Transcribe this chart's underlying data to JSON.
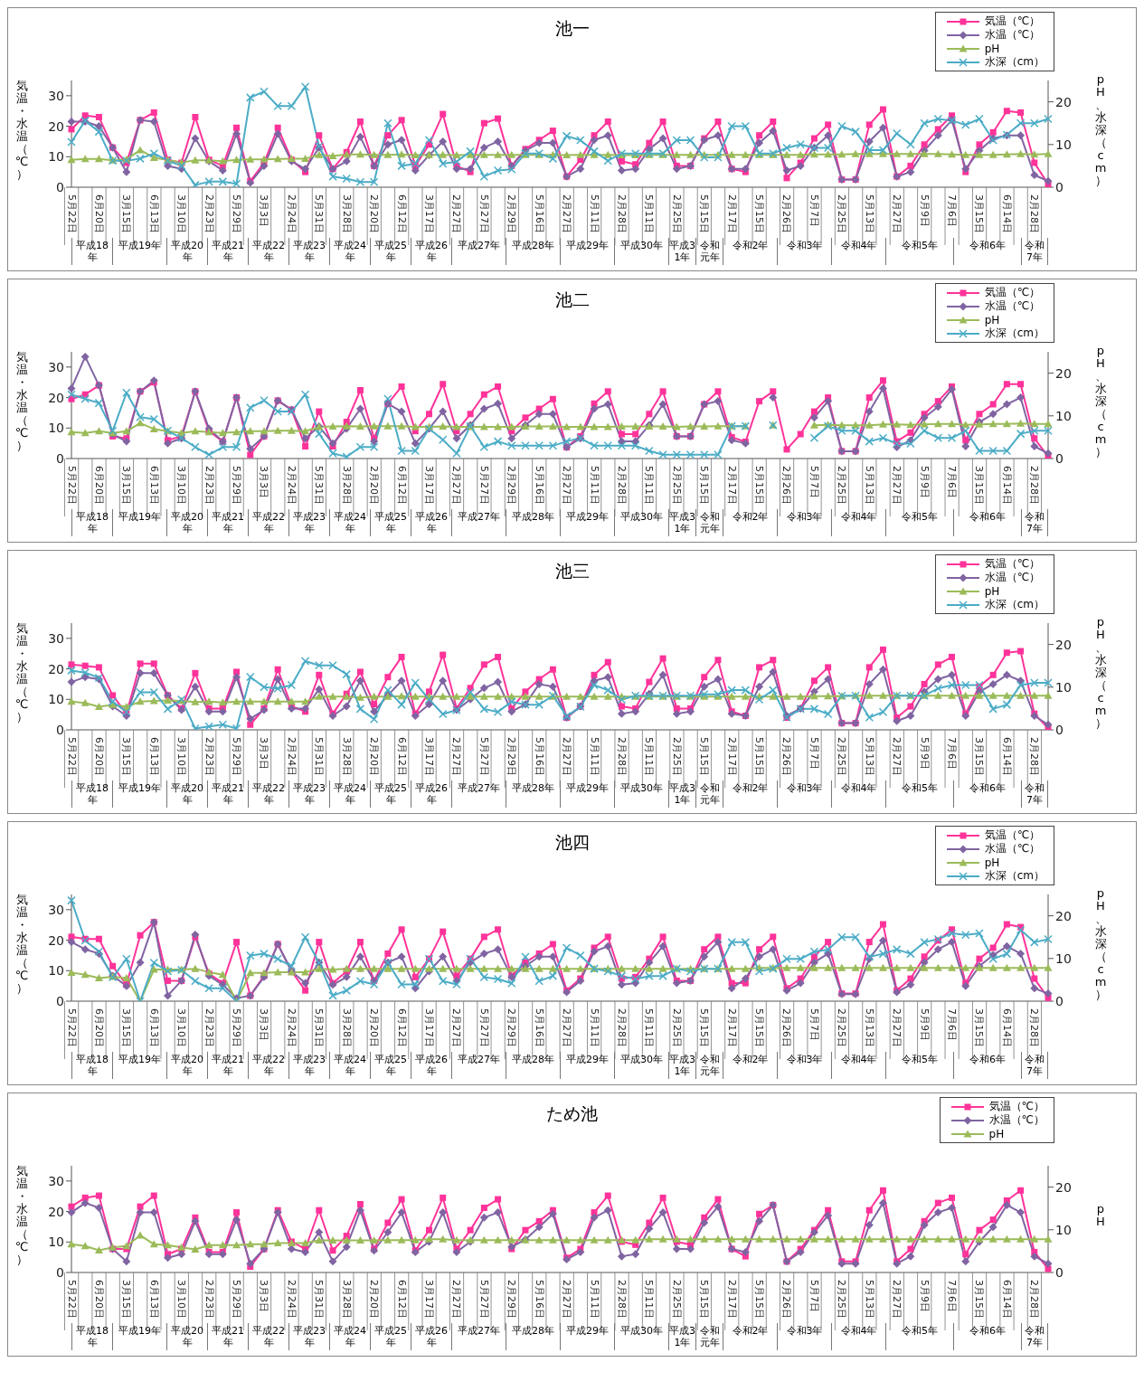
{
  "chart_data": [
    {
      "type": "line",
      "title": "池一",
      "ylabel": "気温・水温（℃）",
      "y2label": "pH、水深（cm）",
      "legend": "top right",
      "categories": [
        "5月22日",
        null,
        "6月20日",
        null,
        "3月15日",
        null,
        "6月13日",
        null,
        "3月10日",
        null,
        "2月23日",
        null,
        "5月29日",
        null,
        "3月3日",
        null,
        "2月24日",
        null,
        "5月31日",
        null,
        "3月28日",
        null,
        "2月20日",
        null,
        "6月12日",
        null,
        "3月17日",
        null,
        "2月27日",
        null,
        "5月27日",
        null,
        "2月29日",
        null,
        "5月16日",
        null,
        "2月27日",
        null,
        "5月11日",
        null,
        "2月28日",
        null,
        "5月11日",
        null,
        "2月25日",
        null,
        "5月15日",
        null,
        "2月17日",
        null,
        "5月15日",
        null,
        "2月26日",
        null,
        "5月7日",
        null,
        "2月25日",
        null,
        "5月13日",
        null,
        "2月27日",
        null,
        "5月9日",
        null,
        "7月6日",
        null,
        "3月15日",
        null,
        "6月14日",
        null,
        "2月28日",
        null
      ],
      "ylim": [
        0,
        35
      ],
      "yticks": [
        0,
        10,
        20,
        30
      ],
      "y2lim": [
        0,
        25
      ],
      "y2ticks": [
        0,
        10,
        20
      ],
      "series": [
        {
          "name": "気温（℃）",
          "color": "#ff3399",
          "marker": "square",
          "values": [
            19,
            23.5,
            23,
            13,
            8,
            22,
            24.5,
            9,
            8,
            23,
            9,
            7,
            19.5,
            2,
            8,
            19.5,
            9,
            5,
            17,
            6,
            11.5,
            21.5,
            7,
            17,
            22,
            7,
            14,
            24,
            7,
            5,
            21,
            22.5,
            7,
            12.5,
            15.5,
            18.5,
            3.5,
            9,
            17,
            21.5,
            8.5,
            7.5,
            14.5,
            21.5,
            7,
            7,
            16,
            21.5,
            6,
            5,
            17,
            21.5,
            3,
            8,
            16,
            20.5,
            2.5,
            2.5,
            20.5,
            25.5,
            3.5,
            7,
            14,
            19,
            23.5,
            5,
            14,
            18,
            25,
            24.5,
            8,
            1
          ]
        },
        {
          "name": "水温（℃）",
          "color": "#8064a2",
          "marker": "diamond",
          "values": [
            21.5,
            21.5,
            20,
            13,
            5,
            22,
            21.5,
            7,
            6,
            16,
            8.5,
            5.5,
            17.5,
            1.5,
            7,
            17.5,
            8.5,
            6,
            13,
            6,
            8.5,
            16.5,
            7,
            14,
            15.5,
            5.5,
            10.5,
            15,
            6,
            6,
            13,
            15,
            7,
            12,
            14.5,
            14.5,
            3.5,
            6,
            15.5,
            17,
            5.5,
            6,
            12.5,
            16,
            6,
            7,
            15.5,
            17,
            6,
            6,
            14.5,
            18.5,
            5.5,
            7,
            13,
            17,
            2.5,
            2.5,
            15,
            19.5,
            3.5,
            5,
            12,
            17,
            22,
            6,
            12,
            16,
            17,
            17,
            4,
            2
          ]
        },
        {
          "name": "pH",
          "color": "#9bbb59",
          "marker": "triangle",
          "axis": "y2",
          "values": [
            6.4,
            6.6,
            6.6,
            6.3,
            6.5,
            8.7,
            6.9,
            6.4,
            5.8,
            6.3,
            6.3,
            6.1,
            6.4,
            6.5,
            6.5,
            6.6,
            6.7,
            6.7,
            7.6,
            7.3,
            7.7,
            7.7,
            7.6,
            7.6,
            7.7,
            7.5,
            7.6,
            7.6,
            7.5,
            7.6,
            7.6,
            7.6,
            7.6,
            7.6,
            7.6,
            7.6,
            7.5,
            7.6,
            7.6,
            7.6,
            7.5,
            7.5,
            7.6,
            7.6,
            7.6,
            7.6,
            7.6,
            7.6,
            7.6,
            7.6,
            7.6,
            7.6,
            7.6,
            7.6,
            7.7,
            7.7,
            7.7,
            7.8,
            7.8,
            7.8,
            7.8,
            7.8,
            7.8,
            7.8,
            7.7,
            7.6,
            7.6,
            7.6,
            7.7,
            7.8,
            7.7,
            7.8
          ]
        },
        {
          "name": "水深（cm）",
          "color": "#4bacc6",
          "marker": "cross",
          "axis": "y2",
          "values": [
            10.6,
            15.6,
            13,
            6.2,
            6.2,
            6.7,
            7.9,
            6.2,
            5,
            0.5,
            1.3,
            1.3,
            0.8,
            21,
            22.4,
            19,
            19,
            23.5,
            9.6,
            2.5,
            2,
            1.2,
            1.2,
            15,
            5,
            5.5,
            11,
            5.5,
            6,
            8.4,
            2.5,
            3.9,
            4.2,
            7.9,
            7.9,
            6.7,
            12,
            11,
            8.4,
            6.2,
            7.9,
            7.9,
            7.9,
            7.9,
            11,
            11,
            7,
            7,
            14.3,
            14.3,
            7.9,
            7.9,
            9.2,
            10,
            9.2,
            9.2,
            14.3,
            13,
            8.7,
            8.7,
            12.6,
            10,
            15,
            16,
            15.6,
            14.6,
            16,
            11,
            12.3,
            15,
            15,
            16
          ]
        }
      ],
      "annotations": [
        "平成18年",
        "平成19年",
        "平成20年",
        "平成21年",
        "平成22年",
        "平成23年",
        "平成24年",
        "平成25年",
        "平成26年",
        "平成27年",
        "平成28年",
        "平成29年",
        "平成30年",
        "平成31年",
        "令和元年",
        "令和2年",
        "令和3年",
        "令和4年",
        "令和5年",
        "令和6年",
        "令和7年"
      ]
    },
    {
      "type": "line",
      "title": "池二",
      "ylabel": "気温・水温（℃）",
      "y2label": "pH、水深（cm）",
      "legend": "top right",
      "categories": [
        "5月22日",
        null,
        "6月20日",
        null,
        "3月15日",
        null,
        "6月13日",
        null,
        "3月10日",
        null,
        "2月23日",
        null,
        "5月29日",
        null,
        "3月3日",
        null,
        "2月24日",
        null,
        "5月31日",
        null,
        "3月28日",
        null,
        "2月20日",
        null,
        "6月12日",
        null,
        "3月17日",
        null,
        "2月27日",
        null,
        "5月27日",
        null,
        "2月29日",
        null,
        "5月16日",
        null,
        "2月27日",
        null,
        "5月11日",
        null,
        "2月28日",
        null,
        "5月11日",
        null,
        "2月25日",
        null,
        "5月15日",
        null,
        "2月17日",
        null,
        "5月15日",
        null,
        "2月26日",
        null,
        "5月7日",
        null,
        "2月25日",
        null,
        "5月13日",
        null,
        "2月27日",
        null,
        "5月9日",
        null,
        "7月6日",
        null,
        "3月15日",
        null,
        "6月14日",
        null,
        "2月28日",
        null
      ],
      "ylim": [
        0,
        35
      ],
      "yticks": [
        0,
        10,
        20,
        30
      ],
      "y2lim": [
        0,
        25
      ],
      "y2ticks": [
        0,
        10,
        20
      ],
      "series": [
        {
          "name": "気温（℃）",
          "color": "#ff3399",
          "marker": "square",
          "values": [
            19.5,
            21,
            24,
            7.3,
            6.6,
            22,
            25,
            6,
            7.3,
            22,
            9,
            5.6,
            20,
            1.2,
            7.3,
            19,
            16,
            4,
            15.4,
            4,
            12,
            22.4,
            6.6,
            18,
            23.6,
            9,
            14.6,
            24.4,
            9,
            14.6,
            21,
            23.6,
            9,
            13.4,
            16.3,
            19.5,
            3.7,
            7.3,
            18,
            22,
            8,
            8,
            14.6,
            22,
            7.3,
            7.3,
            17.8,
            22,
            7,
            5.5,
            18.8,
            22,
            3,
            8,
            15.4,
            20,
            2.4,
            2.4,
            20,
            25.6,
            5.6,
            8.5,
            14.6,
            18.8,
            23.6,
            6,
            14.6,
            17.8,
            24.4,
            24.4,
            6.6,
            0.7
          ]
        },
        {
          "name": "水温（℃）",
          "color": "#8064a2",
          "marker": "diamond",
          "values": [
            23,
            33.4,
            24,
            8,
            5.6,
            22,
            25.6,
            5,
            6.6,
            22,
            9.8,
            5.6,
            20,
            3.2,
            7.3,
            19,
            16,
            6.6,
            10.5,
            5,
            9.8,
            16.3,
            5.6,
            18,
            15.4,
            5,
            9.8,
            15.4,
            6.6,
            11,
            16.3,
            18,
            6.6,
            11,
            14.6,
            14.6,
            3.7,
            6.6,
            16.3,
            17.8,
            5.6,
            5.6,
            11,
            17.8,
            7.3,
            7.3,
            17.8,
            18.8,
            6,
            5,
            null,
            20,
            null,
            null,
            13.4,
            18.8,
            2.4,
            2.4,
            15.4,
            23,
            3.7,
            6,
            13.4,
            17,
            22.7,
            4,
            12,
            14.6,
            17.8,
            20,
            4,
            1.7
          ]
        },
        {
          "name": "pH",
          "color": "#9bbb59",
          "marker": "triangle",
          "axis": "y2",
          "values": [
            6.2,
            6.0,
            6.4,
            6.0,
            6.4,
            8.3,
            6.9,
            6.4,
            6.0,
            6.4,
            6.2,
            6.0,
            6.2,
            6.4,
            6.4,
            6.5,
            6.5,
            6.4,
            7.4,
            7.5,
            7.6,
            7.5,
            7.6,
            7.6,
            7.6,
            7.4,
            7.4,
            7.5,
            7.4,
            7.4,
            7.4,
            7.4,
            7.4,
            7.5,
            7.5,
            7.5,
            7.4,
            7.4,
            7.4,
            7.4,
            7.5,
            7.5,
            7.5,
            7.5,
            7.4,
            7.5,
            7.5,
            7.6,
            7.6,
            7.6,
            null,
            7.8,
            null,
            null,
            7.8,
            7.9,
            7.8,
            7.8,
            7.8,
            8.0,
            8.0,
            7.9,
            8.0,
            8.1,
            8.1,
            7.9,
            8.0,
            8.1,
            8.1,
            8.2,
            8.1,
            8.1
          ]
        },
        {
          "name": "水深（cm）",
          "color": "#4bacc6",
          "marker": "cross",
          "axis": "y2",
          "values": [
            15,
            14,
            13,
            6.5,
            15.4,
            9.7,
            9.2,
            6.5,
            4.8,
            2.7,
            0.9,
            2.7,
            2.7,
            11.9,
            13.6,
            11,
            11,
            15,
            5.8,
            1.2,
            0.4,
            2.7,
            2.7,
            14,
            1.8,
            1.8,
            7,
            4.4,
            1.2,
            7.6,
            2.7,
            4,
            3,
            3,
            3,
            3,
            4,
            4.8,
            3,
            3,
            3,
            3,
            1.8,
            0.9,
            0.9,
            0.9,
            0.9,
            0.9,
            7.6,
            7.6,
            null,
            7.8,
            null,
            null,
            4.8,
            7.6,
            6.5,
            6.5,
            4,
            4.8,
            3.5,
            3.5,
            6.5,
            4.8,
            4.8,
            6.5,
            1.8,
            1.8,
            1.8,
            5.8,
            6.5,
            6.5
          ]
        }
      ],
      "annotations": [
        "平成18年",
        "平成19年",
        "平成20年",
        "平成21年",
        "平成22年",
        "平成23年",
        "平成24年",
        "平成25年",
        "平成26年",
        "平成27年",
        "平成28年",
        "平成29年",
        "平成30年",
        "平成31年",
        "令和元年",
        "令和2年",
        "令和3年",
        "令和4年",
        "令和5年",
        "令和6年",
        "令和7年"
      ]
    },
    {
      "type": "line",
      "title": "池三",
      "ylabel": "気温・水温（℃）",
      "y2label": "pH、水深（cm）",
      "legend": "top right",
      "categories": [
        "5月22日",
        null,
        "6月20日",
        null,
        "3月15日",
        null,
        "6月13日",
        null,
        "3月10日",
        null,
        "2月23日",
        null,
        "5月29日",
        null,
        "3月3日",
        null,
        "2月24日",
        null,
        "5月31日",
        null,
        "3月28日",
        null,
        "2月20日",
        null,
        "6月12日",
        null,
        "3月17日",
        null,
        "2月27日",
        null,
        "5月27日",
        null,
        "2月29日",
        null,
        "5月16日",
        null,
        "2月27日",
        null,
        "5月11日",
        null,
        "2月28日",
        null,
        "5月11日",
        null,
        "2月25日",
        null,
        "5月15日",
        null,
        "2月17日",
        null,
        "5月15日",
        null,
        "2月26日",
        null,
        "5月7日",
        null,
        "2月25日",
        null,
        "5月13日",
        null,
        "2月27日",
        null,
        "5月9日",
        null,
        "7月6日",
        null,
        "3月15日",
        null,
        "6月14日",
        null,
        "2月28日",
        null
      ],
      "ylim": [
        0,
        35
      ],
      "yticks": [
        0,
        10,
        20,
        30
      ],
      "y2lim": [
        0,
        25
      ],
      "y2ticks": [
        0,
        10,
        20
      ],
      "series": [
        {
          "name": "気温（℃）",
          "color": "#ff3399",
          "marker": "square",
          "values": [
            21.4,
            21,
            20.5,
            11.3,
            5.3,
            21.7,
            21.7,
            11.3,
            7,
            18.6,
            7,
            7,
            19,
            1.7,
            7,
            19.8,
            7.7,
            6,
            18,
            5.3,
            11.8,
            19,
            8.4,
            17.3,
            23.9,
            5.3,
            12.5,
            24.6,
            7,
            13.7,
            21.4,
            23.9,
            7,
            12.5,
            16.6,
            19.8,
            4,
            7.7,
            18,
            22.2,
            7.7,
            7,
            15.7,
            23.4,
            7,
            7,
            17.3,
            22.9,
            6,
            4.6,
            20.5,
            22.9,
            4,
            7,
            16.1,
            20.5,
            2.2,
            2.2,
            20.5,
            26.3,
            4,
            7.7,
            15,
            21.4,
            23.9,
            5.3,
            14.2,
            18,
            25.3,
            25.8,
            5.3,
            0.5
          ]
        },
        {
          "name": "水温（℃）",
          "color": "#8064a2",
          "marker": "diamond",
          "values": [
            15.7,
            17.3,
            16.6,
            7.7,
            4.6,
            18.6,
            18.6,
            11.3,
            6.5,
            14.2,
            6,
            6,
            17.3,
            3.6,
            6.5,
            16.6,
            7,
            7,
            13.3,
            4.6,
            7.7,
            16.1,
            6,
            11.3,
            16.1,
            4.6,
            8.4,
            16.1,
            6.5,
            10,
            13.7,
            15.7,
            6,
            8.4,
            15,
            14.2,
            4,
            7.7,
            16.1,
            17.3,
            5.3,
            6,
            11.8,
            18,
            5.3,
            6,
            14.2,
            16.6,
            5.3,
            4.6,
            14.2,
            19,
            4.6,
            7,
            12.5,
            16.6,
            2.2,
            2.2,
            15,
            19.8,
            2.9,
            4.6,
            12.5,
            16.6,
            18,
            4.6,
            12.5,
            15,
            18,
            16.1,
            4.6,
            1.7
          ]
        },
        {
          "name": "pH",
          "color": "#9bbb59",
          "marker": "triangle",
          "axis": "y2",
          "values": [
            6.6,
            6.3,
            5.4,
            5.9,
            5.4,
            6.6,
            6.8,
            6.9,
            6.8,
            6.5,
            6.6,
            6.4,
            6.6,
            6.6,
            6.6,
            6.6,
            6.6,
            6.6,
            7.8,
            7.8,
            7.8,
            7.6,
            7.8,
            7.8,
            7.9,
            7.8,
            7.8,
            7.8,
            7.8,
            7.8,
            7.8,
            7.8,
            7.8,
            7.8,
            7.8,
            7.8,
            7.8,
            7.8,
            7.8,
            7.8,
            7.8,
            7.8,
            7.8,
            7.8,
            7.8,
            7.8,
            7.8,
            7.8,
            7.8,
            7.8,
            7.8,
            7.8,
            7.8,
            7.8,
            7.9,
            7.9,
            7.9,
            8,
            8,
            8,
            8,
            8,
            8,
            8,
            8,
            8,
            8,
            8,
            8,
            8,
            8,
            8
          ]
        },
        {
          "name": "水深（cm）",
          "color": "#4bacc6",
          "marker": "cross",
          "axis": "y2",
          "values": [
            13.9,
            13.4,
            12.2,
            6.6,
            4.2,
            8.8,
            8.8,
            4.9,
            7.1,
            0.3,
            0.8,
            1.2,
            0.3,
            12.4,
            10,
            9.7,
            10.5,
            16.1,
            15.1,
            15.1,
            13,
            4.9,
            2.5,
            9.3,
            5.9,
            11,
            7.1,
            3.7,
            4.6,
            8.8,
            4.9,
            4.2,
            6.6,
            5.9,
            5.9,
            8,
            3.2,
            5.4,
            10.5,
            9.3,
            7.1,
            8,
            8,
            8,
            8,
            8,
            8.3,
            8.3,
            9.3,
            9.3,
            7.1,
            9.3,
            2.9,
            4.9,
            4.9,
            3.7,
            8,
            8,
            2.9,
            4.2,
            8,
            8,
            8,
            9.7,
            10.5,
            10.5,
            10.5,
            4.9,
            5.9,
            10.5,
            11,
            11
          ]
        }
      ],
      "annotations": [
        "平成18年",
        "平成19年",
        "平成20年",
        "平成21年",
        "平成22年",
        "平成23年",
        "平成24年",
        "平成25年",
        "平成26年",
        "平成27年",
        "平成28年",
        "平成29年",
        "平成30年",
        "平成31年",
        "令和元年",
        "令和2年",
        "令和3年",
        "令和4年",
        "令和5年",
        "令和6年",
        "令和7年"
      ]
    },
    {
      "type": "line",
      "title": "池四",
      "ylabel": "気温・水温（℃）",
      "y2label": "pH、水深（cm）",
      "legend": "top right",
      "categories": [
        "5月22日",
        null,
        "6月20日",
        null,
        "3月15日",
        null,
        "6月13日",
        null,
        "3月10日",
        null,
        "2月23日",
        null,
        "5月29日",
        null,
        "3月3日",
        null,
        "2月24日",
        null,
        "5月31日",
        null,
        "3月28日",
        null,
        "2月20日",
        null,
        "6月12日",
        null,
        "3月17日",
        null,
        "2月27日",
        null,
        "5月27日",
        null,
        "2月29日",
        null,
        "5月16日",
        null,
        "2月27日",
        null,
        "5月11日",
        null,
        "2月28日",
        null,
        "5月11日",
        null,
        "2月25日",
        null,
        "5月15日",
        null,
        "2月17日",
        null,
        "5月15日",
        null,
        "2月26日",
        null,
        "5月7日",
        null,
        "2月25日",
        null,
        "5月13日",
        null,
        "2月27日",
        null,
        "5月9日",
        null,
        "7月6日",
        null,
        "3月15日",
        null,
        "6月14日",
        null,
        "2月28日",
        null
      ],
      "ylim": [
        0,
        35
      ],
      "yticks": [
        0,
        10,
        20,
        30
      ],
      "y2lim": [
        0,
        25
      ],
      "y2ticks": [
        0,
        10,
        20
      ],
      "series": [
        {
          "name": "気温（℃）",
          "color": "#ff3399",
          "marker": "square",
          "values": [
            21.1,
            20.4,
            20.4,
            11.5,
            5.4,
            21.6,
            25.9,
            6.7,
            6.7,
            21.1,
            9,
            5.9,
            19.4,
            1.8,
            8.3,
            18.7,
            9.8,
            3.5,
            19.4,
            5.9,
            9.8,
            19.4,
            6.7,
            15.6,
            23.5,
            7.9,
            13.9,
            22.8,
            8.3,
            13.9,
            21.1,
            23.5,
            8.3,
            12.7,
            15.6,
            18.7,
            3.5,
            7.4,
            17.5,
            21.1,
            7.4,
            7.9,
            13.9,
            21.1,
            6.7,
            6.7,
            17,
            21.1,
            5.9,
            5.9,
            17,
            21.1,
            4.2,
            7.4,
            14.6,
            19.4,
            2.5,
            2.5,
            19.4,
            25.2,
            3.5,
            7.4,
            14.6,
            19.9,
            23.5,
            5.9,
            13.9,
            17.5,
            25.2,
            24.3,
            7.4,
            1.1
          ]
        },
        {
          "name": "水温（℃）",
          "color": "#8064a2",
          "marker": "diamond",
          "values": [
            19.4,
            17,
            15.6,
            8.3,
            5,
            12.7,
            25.9,
            1.8,
            6.7,
            21.8,
            8.3,
            5.4,
            1,
            1.8,
            7.9,
            18.7,
            9.8,
            5.9,
            12.7,
            5.4,
            7.9,
            14.6,
            6.7,
            12.7,
            14.6,
            4.2,
            9.8,
            14.6,
            6.7,
            12.7,
            15.6,
            17,
            7.9,
            11.5,
            14.6,
            14.6,
            3,
            6.7,
            16.3,
            18,
            5.4,
            5.9,
            12.7,
            18,
            5.9,
            6.7,
            14.6,
            19.4,
            4.2,
            7.4,
            14.6,
            17,
            3.5,
            5.9,
            12.7,
            15.6,
            2.3,
            2.3,
            13.9,
            19.9,
            3,
            5.4,
            12.7,
            17,
            19.4,
            5,
            11.5,
            15.1,
            18,
            15.6,
            4.2,
            2.5
          ]
        },
        {
          "name": "pH",
          "color": "#9bbb59",
          "marker": "triangle",
          "axis": "y2",
          "values": [
            6.7,
            6.2,
            5.4,
            5.7,
            5.4,
            0,
            7.4,
            7.4,
            7.4,
            7.6,
            6.8,
            6.2,
            0,
            6.6,
            6.6,
            6.8,
            6.8,
            6.8,
            7.6,
            7.4,
            7.6,
            7.6,
            7.6,
            7.6,
            7.6,
            7.6,
            7.6,
            7.6,
            7.6,
            7.6,
            7.6,
            7.6,
            7.6,
            7.6,
            7.6,
            7.6,
            7.6,
            7.6,
            7.6,
            7.6,
            7.6,
            7.6,
            7.6,
            7.6,
            7.6,
            7.6,
            7.6,
            7.6,
            7.6,
            7.6,
            7.8,
            7.8,
            7.8,
            7.8,
            7.8,
            7.8,
            7.8,
            7.8,
            7.8,
            7.8,
            7.8,
            7.8,
            7.8,
            7.8,
            7.8,
            7.8,
            7.8,
            7.8,
            7.8,
            7.8,
            7.8,
            7.8
          ]
        },
        {
          "name": "水深（cm）",
          "color": "#4bacc6",
          "marker": "cross",
          "axis": "y2",
          "values": [
            23.6,
            14.2,
            11.6,
            5.6,
            9.9,
            0,
            9,
            7,
            7.3,
            4.7,
            3,
            3,
            0,
            10.7,
            11.1,
            9.9,
            8.2,
            15,
            9,
            1.3,
            2.5,
            4.7,
            3.9,
            9,
            3.9,
            3.9,
            9.9,
            4.7,
            3.9,
            9.9,
            5.6,
            5.2,
            4.2,
            10.4,
            4.7,
            5.9,
            12.5,
            10.7,
            7.6,
            7,
            5.9,
            5.2,
            5.9,
            5.9,
            7.6,
            7,
            7.6,
            7.6,
            13.8,
            13.8,
            7,
            7.6,
            9.9,
            9.9,
            11.6,
            12.1,
            15,
            15,
            10.4,
            11.1,
            12.1,
            11.1,
            13.8,
            14.5,
            15.9,
            15.5,
            15.9,
            9.9,
            11.1,
            16.7,
            13.8,
            14.5
          ]
        }
      ],
      "annotations": [
        "平成18年",
        "平成19年",
        "平成20年",
        "平成21年",
        "平成22年",
        "平成23年",
        "平成24年",
        "平成25年",
        "平成26年",
        "平成27年",
        "平成28年",
        "平成29年",
        "平成30年",
        "平成31年",
        "令和元年",
        "令和2年",
        "令和3年",
        "令和4年",
        "令和5年",
        "令和6年",
        "令和7年"
      ]
    },
    {
      "type": "line",
      "title": "ため池",
      "ylabel": "気温・水温（℃）",
      "y2label": "pH",
      "legend": "top right",
      "categories": [
        "5月22日",
        null,
        "6月20日",
        null,
        "3月15日",
        null,
        "6月13日",
        null,
        "3月10日",
        null,
        "2月23日",
        null,
        "5月29日",
        null,
        "3月3日",
        null,
        "2月24日",
        null,
        "5月31日",
        null,
        "3月28日",
        null,
        "2月20日",
        null,
        "6月12日",
        null,
        "3月17日",
        null,
        "2月27日",
        null,
        "5月27日",
        null,
        "2月29日",
        null,
        "5月16日",
        null,
        "2月27日",
        null,
        "5月11日",
        null,
        "2月28日",
        null,
        "5月11日",
        null,
        "2月25日",
        null,
        "5月15日",
        null,
        "2月17日",
        null,
        "5月15日",
        null,
        "2月26日",
        null,
        "5月7日",
        null,
        "2月25日",
        null,
        "5月13日",
        null,
        "2月27日",
        null,
        "5月9日",
        null,
        "7月6日",
        null,
        "3月15日",
        null,
        "6月14日",
        null,
        "2月28日",
        null
      ],
      "ylim": [
        0,
        35
      ],
      "yticks": [
        0,
        10,
        20,
        30
      ],
      "y2lim": [
        0,
        25
      ],
      "y2ticks": [
        0,
        10,
        20
      ],
      "series": [
        {
          "name": "気温（℃）",
          "color": "#ff3399",
          "marker": "square",
          "values": [
            21.6,
            24.5,
            25.2,
            7.7,
            7.7,
            21.6,
            25.2,
            6,
            7.7,
            18,
            6.7,
            6.7,
            19.7,
            1.9,
            7.7,
            20.4,
            10.1,
            7.7,
            20.4,
            7.2,
            12,
            22.4,
            7.7,
            16.3,
            24,
            7.2,
            13.9,
            24.5,
            7.7,
            13.9,
            21.2,
            24,
            7.7,
            13.9,
            16.8,
            20.4,
            4.8,
            7.7,
            19.7,
            25.2,
            10.1,
            9.1,
            16.3,
            24.5,
            10.1,
            9.1,
            18,
            24,
            7.7,
            5.3,
            19.2,
            22.1,
            3.6,
            7.7,
            13.9,
            20.4,
            3.6,
            3.6,
            20.4,
            26.9,
            3.6,
            7.7,
            16.8,
            22.8,
            24.5,
            6,
            13.9,
            17.3,
            23.6,
            26.9,
            6.7,
            1.2
          ]
        },
        {
          "name": "水温（℃）",
          "color": "#8064a2",
          "marker": "diamond",
          "values": [
            19.7,
            22.8,
            21.2,
            7.7,
            3.6,
            19.7,
            19.7,
            4.8,
            6,
            16.8,
            6,
            6,
            17.3,
            2.9,
            7.7,
            19.7,
            7.7,
            6.7,
            13.2,
            3.6,
            8.4,
            20.4,
            7.2,
            13.2,
            19.7,
            6.7,
            10.1,
            19.7,
            6.7,
            10.1,
            18,
            19.7,
            8.4,
            10.8,
            14.9,
            19.2,
            4.3,
            6.7,
            18,
            20.4,
            5.3,
            6,
            14.4,
            19.7,
            7.7,
            7.7,
            16.3,
            21.6,
            7.7,
            6.7,
            16.8,
            22.1,
            3.6,
            6.7,
            13.2,
            18.7,
            2.9,
            2.9,
            15.6,
            22.8,
            2.9,
            5.3,
            15.6,
            19.7,
            21.2,
            3.6,
            10.1,
            14.9,
            22.1,
            19.7,
            5.3,
            2.9
          ]
        },
        {
          "name": "pH",
          "color": "#9bbb59",
          "marker": "triangle",
          "axis": "y2",
          "values": [
            6.6,
            6.2,
            5.2,
            5.9,
            6.2,
            8.7,
            6.6,
            6.4,
            5.9,
            5.4,
            6.4,
            6.4,
            6.4,
            6.6,
            6.6,
            6.9,
            6.9,
            6.9,
            7.5,
            7.5,
            7.5,
            7.5,
            7.5,
            7.6,
            7.6,
            7.6,
            7.8,
            7.8,
            7.6,
            7.6,
            7.6,
            7.6,
            7.6,
            7.6,
            7.6,
            7.6,
            7.6,
            7.6,
            7.6,
            7.6,
            7.6,
            7.6,
            7.8,
            7.8,
            7.8,
            7.8,
            7.8,
            7.8,
            7.8,
            7.8,
            7.8,
            7.8,
            7.8,
            7.8,
            7.8,
            7.8,
            7.8,
            7.8,
            7.8,
            7.8,
            7.8,
            7.8,
            7.8,
            7.8,
            7.8,
            7.8,
            7.8,
            7.8,
            7.8,
            7.8,
            7.8,
            7.8
          ]
        }
      ],
      "annotations": [
        "平成18年",
        "平成19年",
        "平成20年",
        "平成21年",
        "平成22年",
        "平成23年",
        "平成24年",
        "平成25年",
        "平成26年",
        "平成27年",
        "平成28年",
        "平成29年",
        "平成30年",
        "平成31年",
        "令和元年",
        "令和2年",
        "令和3年",
        "令和4年",
        "令和5年",
        "令和6年",
        "令和7年"
      ]
    }
  ]
}
